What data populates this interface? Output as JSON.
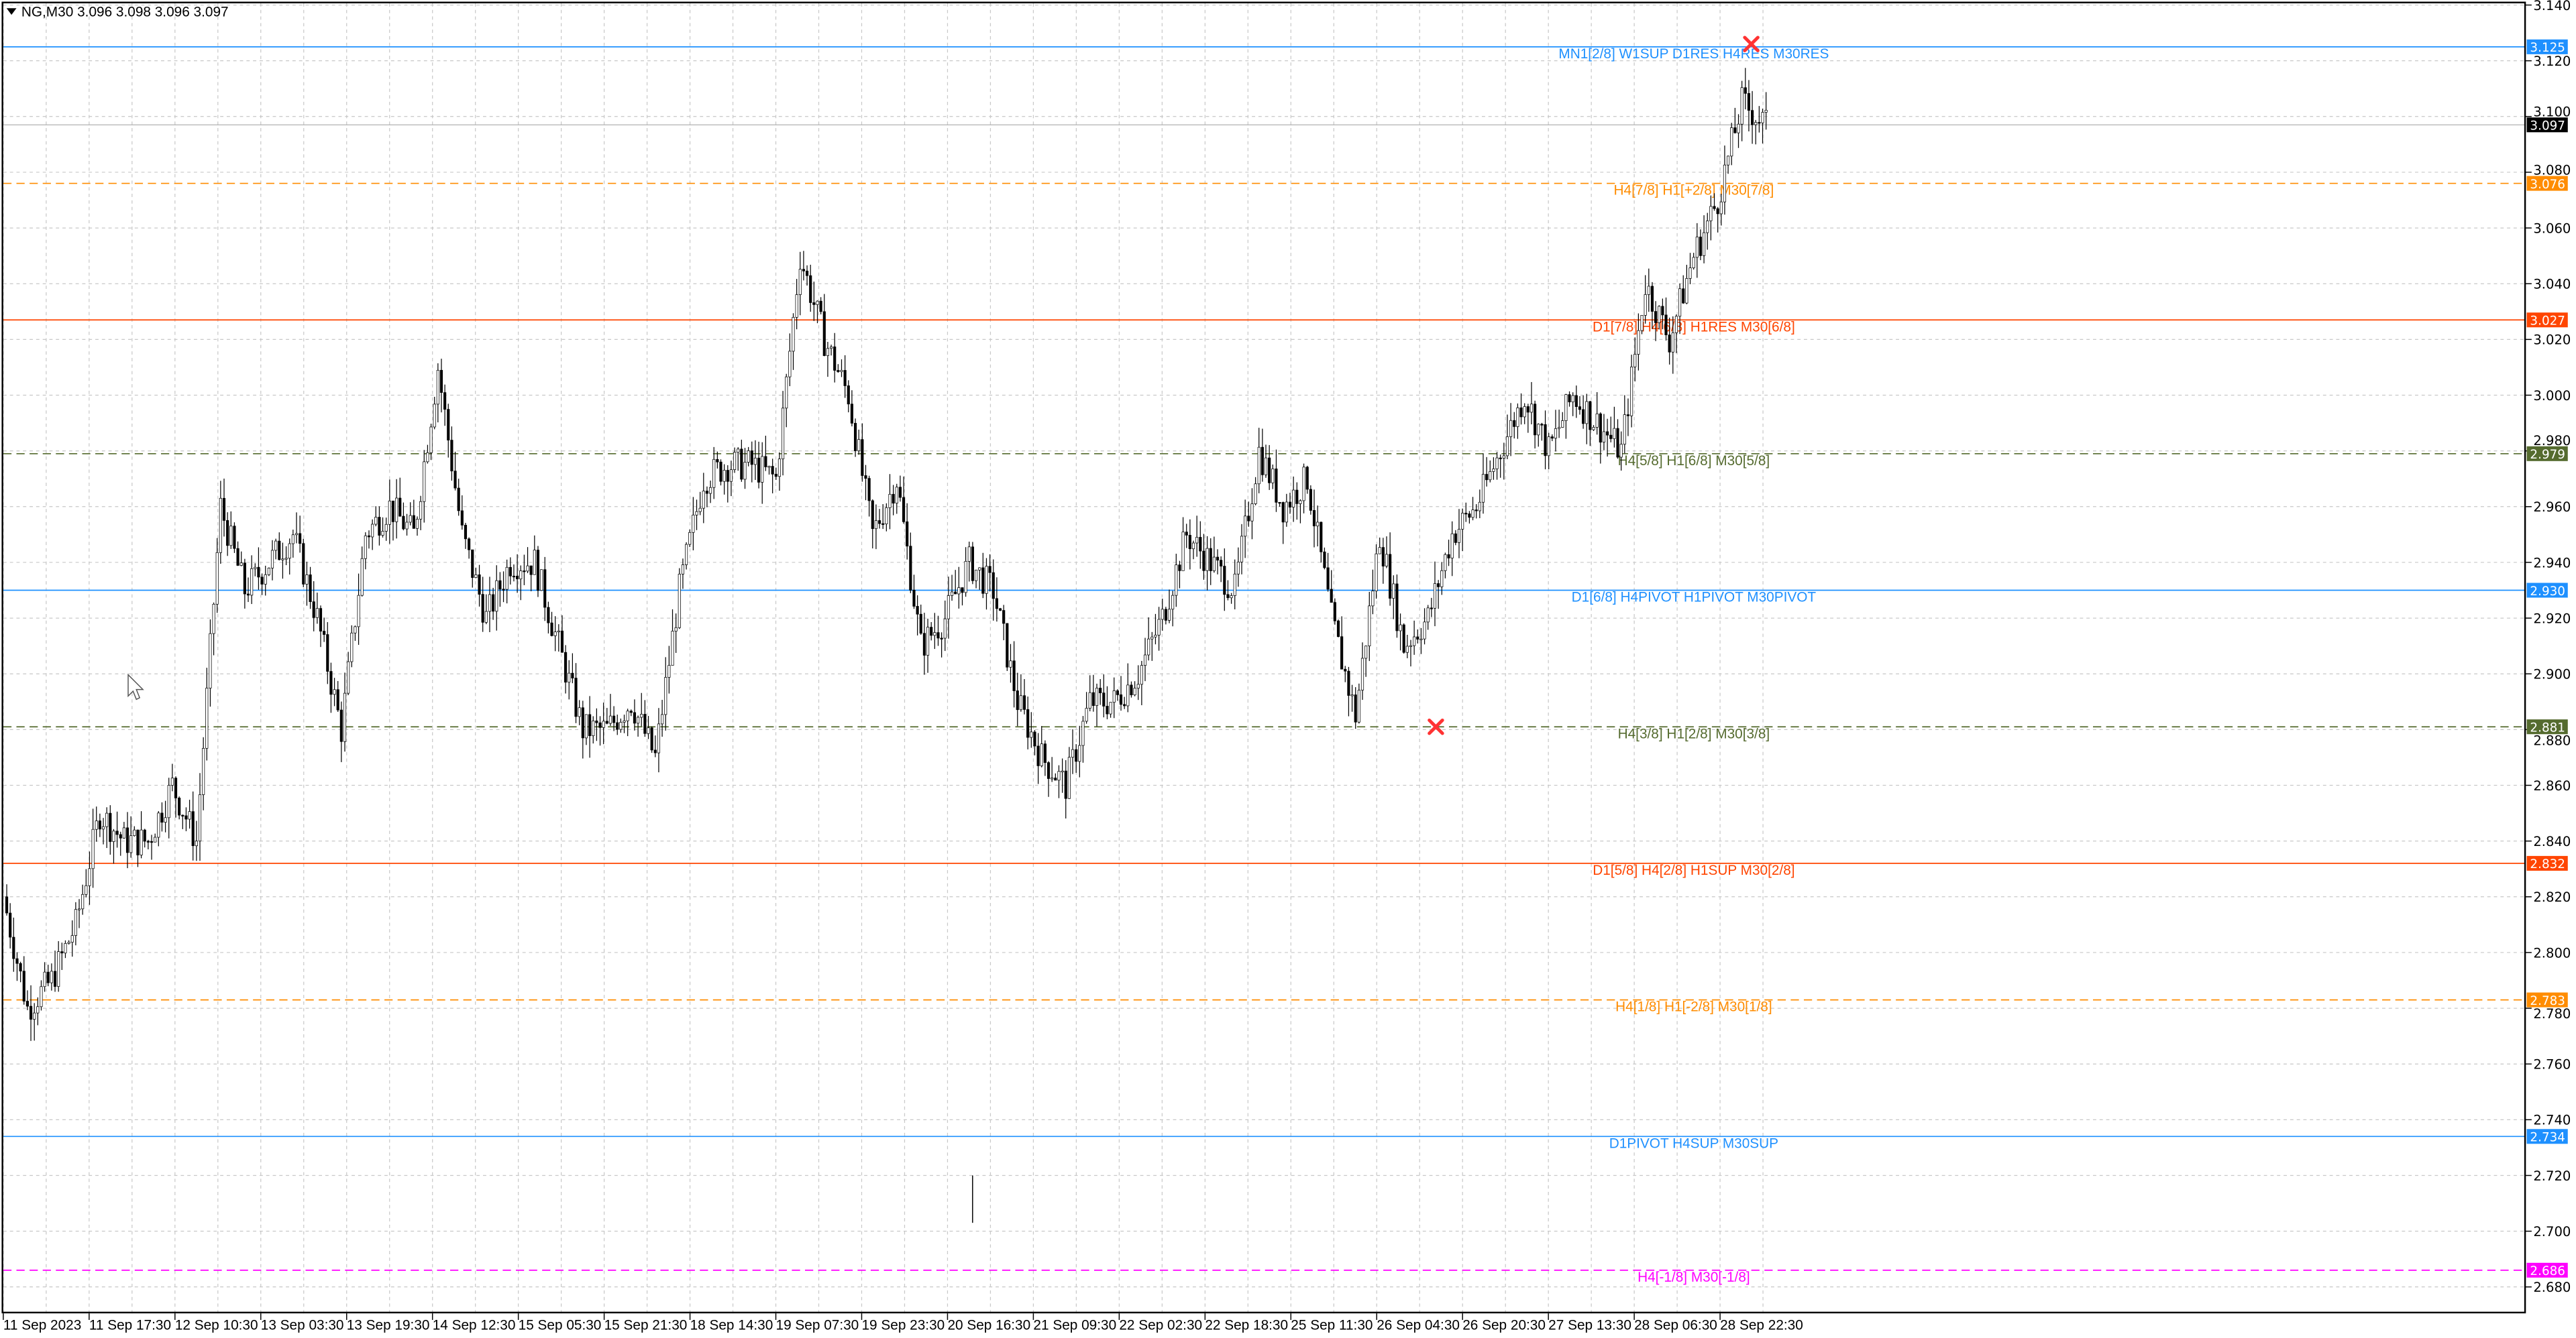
{
  "header": {
    "symbol": "NG,M30",
    "ohlc": "3.096 3.098 3.096 3.097"
  },
  "chart_data": {
    "type": "candlestick",
    "symbol": "NG",
    "timeframe": "M30",
    "ylim": [
      2.67,
      3.14
    ],
    "y_ticks": [
      "3.140",
      "3.120",
      "3.100",
      "3.080",
      "3.060",
      "3.040",
      "3.020",
      "3.000",
      "2.980",
      "2.960",
      "2.940",
      "2.920",
      "2.900",
      "2.880",
      "2.860",
      "2.840",
      "2.820",
      "2.800",
      "2.780",
      "2.760",
      "2.740",
      "2.720",
      "2.700",
      "2.680"
    ],
    "x_ticks": [
      "11 Sep 2023",
      "11 Sep 17:30",
      "12 Sep 10:30",
      "13 Sep 03:30",
      "13 Sep 19:30",
      "14 Sep 12:30",
      "15 Sep 05:30",
      "15 Sep 21:30",
      "18 Sep 14:30",
      "19 Sep 07:30",
      "19 Sep 23:30",
      "20 Sep 16:30",
      "21 Sep 09:30",
      "22 Sep 02:30",
      "22 Sep 18:30",
      "25 Sep 11:30",
      "26 Sep 04:30",
      "26 Sep 20:30",
      "27 Sep 13:30",
      "28 Sep 06:30",
      "28 Sep 22:30"
    ],
    "grid": true,
    "current_price": "3.097",
    "price_path": [
      2.82,
      2.78,
      2.79,
      2.81,
      2.85,
      2.84,
      2.84,
      2.86,
      2.84,
      2.96,
      2.93,
      2.94,
      2.95,
      2.92,
      2.88,
      2.95,
      2.96,
      2.95,
      3.01,
      2.95,
      2.92,
      2.94,
      2.94,
      2.91,
      2.88,
      2.88,
      2.89,
      2.87,
      2.93,
      2.97,
      2.975,
      2.975,
      2.97,
      3.05,
      3.02,
      3.0,
      2.95,
      2.97,
      2.91,
      2.92,
      2.94,
      2.93,
      2.89,
      2.87,
      2.86,
      2.89,
      2.89,
      2.9,
      2.92,
      2.95,
      2.94,
      2.93,
      2.98,
      2.96,
      2.97,
      2.92,
      2.885,
      2.95,
      2.91,
      2.92,
      2.95,
      2.96,
      2.98,
      3.0,
      2.98,
      3.0,
      2.99,
      2.98,
      3.04,
      3.02,
      3.05,
      3.07,
      3.105,
      3.097
    ],
    "levels": [
      {
        "price": 3.125,
        "tag": "3.125",
        "label": "MN1[2/8] W1SUP D1RES H4RES M30RES",
        "color": "#1e90ff",
        "style": "solid"
      },
      {
        "price": 3.076,
        "tag": "3.076",
        "label": "H4[7/8] H1[+2/8] M30[7/8]",
        "color": "#ff8c00",
        "style": "dashed"
      },
      {
        "price": 3.027,
        "tag": "3.027",
        "label": "D1[7/8] H4[6/8] H1RES M30[6/8]",
        "color": "#ff4500",
        "style": "solid"
      },
      {
        "price": 2.979,
        "tag": "2.979",
        "label": "H4[5/8] H1[6/8] M30[5/8]",
        "color": "#556b2f",
        "style": "dashed"
      },
      {
        "price": 2.93,
        "tag": "2.930",
        "label": "D1[6/8] H4PIVOT H1PIVOT M30PIVOT",
        "color": "#1e90ff",
        "style": "solid"
      },
      {
        "price": 2.881,
        "tag": "2.881",
        "label": "H4[3/8] H1[2/8] M30[3/8]",
        "color": "#556b2f",
        "style": "dashed"
      },
      {
        "price": 2.832,
        "tag": "2.832",
        "label": "D1[5/8] H4[2/8] H1SUP M30[2/8]",
        "color": "#ff4500",
        "style": "solid"
      },
      {
        "price": 2.783,
        "tag": "2.783",
        "label": "H4[1/8] H1[-2/8] M30[1/8]",
        "color": "#ff8c00",
        "style": "dashed"
      },
      {
        "price": 2.734,
        "tag": "2.734",
        "label": "D1PIVOT H4SUP M30SUP",
        "color": "#1e90ff",
        "style": "solid"
      },
      {
        "price": 2.686,
        "tag": "2.686",
        "label": "H4[-1/8] M30[-1/8]",
        "color": "#ff00ff",
        "style": "dashed"
      }
    ],
    "markers": [
      {
        "type": "cross",
        "price": 3.126,
        "color": "#ff3333"
      },
      {
        "type": "cross",
        "price": 2.881,
        "color": "#ff3333"
      }
    ]
  }
}
